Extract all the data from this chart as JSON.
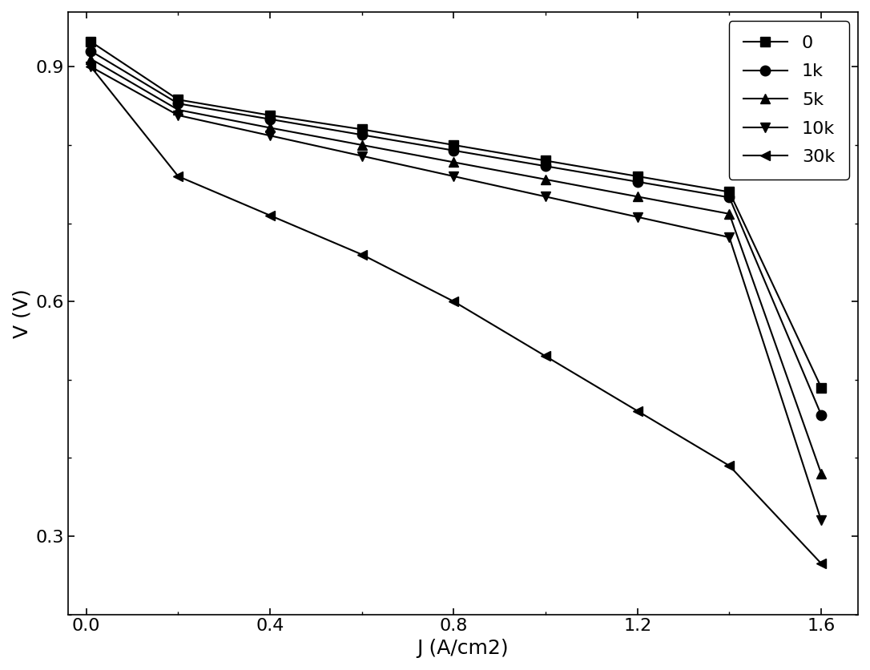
{
  "series": [
    {
      "label": "0",
      "marker": "s",
      "x": [
        0.01,
        0.2,
        0.4,
        0.6,
        0.8,
        1.0,
        1.2,
        1.4,
        1.6
      ],
      "y": [
        0.932,
        0.858,
        0.838,
        0.82,
        0.8,
        0.78,
        0.76,
        0.74,
        0.49
      ]
    },
    {
      "label": "1k",
      "marker": "o",
      "x": [
        0.01,
        0.2,
        0.4,
        0.6,
        0.8,
        1.0,
        1.2,
        1.4,
        1.6
      ],
      "y": [
        0.92,
        0.853,
        0.833,
        0.813,
        0.793,
        0.773,
        0.753,
        0.733,
        0.455
      ]
    },
    {
      "label": "5k",
      "marker": "^",
      "x": [
        0.01,
        0.2,
        0.4,
        0.6,
        0.8,
        1.0,
        1.2,
        1.4,
        1.6
      ],
      "y": [
        0.91,
        0.845,
        0.822,
        0.8,
        0.778,
        0.756,
        0.734,
        0.712,
        0.38
      ]
    },
    {
      "label": "10k",
      "marker": "v",
      "x": [
        0.01,
        0.2,
        0.4,
        0.6,
        0.8,
        1.0,
        1.2,
        1.4,
        1.6
      ],
      "y": [
        0.9,
        0.838,
        0.812,
        0.786,
        0.76,
        0.734,
        0.708,
        0.682,
        0.32
      ]
    },
    {
      "label": "30k",
      "marker": "<",
      "x": [
        0.01,
        0.2,
        0.4,
        0.6,
        0.8,
        1.0,
        1.2,
        1.4,
        1.6
      ],
      "y": [
        0.9,
        0.76,
        0.71,
        0.66,
        0.6,
        0.53,
        0.46,
        0.39,
        0.265
      ]
    }
  ],
  "xlabel": "J (A/cm2)",
  "ylabel": "V (V)",
  "xlim": [
    -0.04,
    1.68
  ],
  "ylim": [
    0.2,
    0.97
  ],
  "xticks": [
    0.0,
    0.4,
    0.8,
    1.2,
    1.6
  ],
  "yticks": [
    0.3,
    0.6,
    0.9
  ],
  "line_color": "#000000",
  "marker_color": "#000000",
  "marker_size": 9,
  "line_width": 1.5,
  "legend_loc": "upper right",
  "background_color": "#ffffff"
}
